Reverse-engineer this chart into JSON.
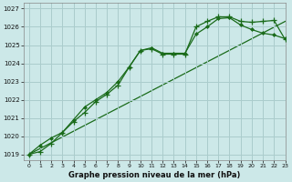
{
  "title": "Graphe pression niveau de la mer (hPa)",
  "bg_color": "#cce8e8",
  "grid_color": "#aacccc",
  "line_color": "#1a6b1a",
  "xlim": [
    -0.5,
    23
  ],
  "ylim": [
    1018.7,
    1027.3
  ],
  "yticks": [
    1019,
    1020,
    1021,
    1022,
    1023,
    1024,
    1025,
    1026,
    1027
  ],
  "xticks": [
    0,
    1,
    2,
    3,
    4,
    5,
    6,
    7,
    8,
    9,
    10,
    11,
    12,
    13,
    14,
    15,
    16,
    17,
    18,
    19,
    20,
    21,
    22,
    23
  ],
  "line1_x": [
    0,
    1,
    2,
    3,
    4,
    5,
    6,
    7,
    8,
    9,
    10,
    11,
    12,
    13,
    14,
    15,
    16,
    17,
    18,
    19,
    20,
    21,
    22,
    23
  ],
  "line1_y": [
    1019.0,
    1019.15,
    1019.6,
    1020.2,
    1020.8,
    1021.3,
    1021.9,
    1022.3,
    1022.8,
    1023.8,
    1024.7,
    1024.8,
    1024.5,
    1024.5,
    1024.5,
    1026.0,
    1026.3,
    1026.55,
    1026.55,
    1026.3,
    1026.25,
    1026.3,
    1026.35,
    1025.3
  ],
  "line2_x": [
    0,
    1,
    2,
    3,
    4,
    5,
    6,
    7,
    8,
    9,
    10,
    11,
    12,
    13,
    14,
    15,
    16,
    17,
    18,
    19,
    20,
    21,
    22,
    23
  ],
  "line2_y": [
    1019.0,
    1019.5,
    1019.9,
    1020.2,
    1020.9,
    1021.6,
    1022.0,
    1022.4,
    1023.0,
    1023.8,
    1024.7,
    1024.85,
    1024.55,
    1024.55,
    1024.55,
    1025.6,
    1026.0,
    1026.45,
    1026.5,
    1026.1,
    1025.85,
    1025.65,
    1025.55,
    1025.35
  ],
  "line3_x": [
    0,
    23
  ],
  "line3_y": [
    1019.0,
    1026.3
  ]
}
